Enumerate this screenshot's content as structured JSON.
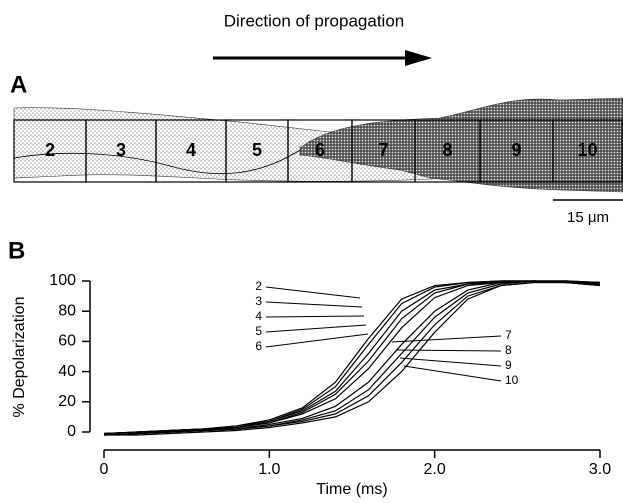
{
  "panel_a": {
    "label": "A",
    "caption": "Direction of propagation",
    "segments": [
      "2",
      "3",
      "4",
      "5",
      "6",
      "7",
      "8",
      "9",
      "10"
    ],
    "scale_bar": "15 μm"
  },
  "chart_data": {
    "type": "line",
    "panel_label": "B",
    "xlabel": "Time (ms)",
    "ylabel": "% Depolarization",
    "xlim": [
      0,
      3.0
    ],
    "xticks": [
      0,
      {
        "value": 1,
        "label": "1.0"
      },
      {
        "value": 2,
        "label": "2.0"
      },
      {
        "value": 3,
        "label": "3.0"
      }
    ],
    "ylim": [
      -5,
      100
    ],
    "yticks": [
      0,
      20,
      40,
      60,
      80,
      100
    ],
    "x": [
      0,
      0.2,
      0.4,
      0.6,
      0.8,
      1.0,
      1.2,
      1.4,
      1.6,
      1.8,
      2.0,
      2.2,
      2.4,
      2.6,
      2.8,
      3.0
    ],
    "series": [
      {
        "name": "2",
        "color": "#000",
        "values": [
          -1,
          0,
          1,
          2,
          4,
          8,
          16,
          33,
          62,
          88,
          97,
          99,
          100,
          100,
          100,
          99
        ]
      },
      {
        "name": "3",
        "color": "#000",
        "values": [
          -1,
          0,
          1,
          2,
          4,
          7,
          15,
          30,
          58,
          85,
          96,
          99,
          100,
          100,
          99,
          99
        ]
      },
      {
        "name": "4",
        "color": "#000",
        "values": [
          -1,
          0,
          1,
          2,
          3,
          7,
          14,
          27,
          52,
          80,
          94,
          98,
          100,
          100,
          100,
          99
        ]
      },
      {
        "name": "5",
        "color": "#000",
        "values": [
          -2,
          -1,
          1,
          2,
          3,
          6,
          13,
          25,
          47,
          75,
          92,
          98,
          99,
          100,
          100,
          98
        ]
      },
      {
        "name": "6",
        "color": "#000",
        "values": [
          -2,
          -1,
          0,
          1,
          3,
          6,
          12,
          22,
          42,
          69,
          89,
          97,
          99,
          100,
          99,
          98
        ]
      },
      {
        "name": "7",
        "color": "#000",
        "values": [
          -2,
          -1,
          0,
          1,
          2,
          5,
          9,
          17,
          33,
          58,
          80,
          94,
          99,
          100,
          99,
          98
        ]
      },
      {
        "name": "8",
        "color": "#000",
        "values": [
          -2,
          -1,
          0,
          1,
          2,
          4,
          8,
          14,
          28,
          52,
          76,
          92,
          98,
          100,
          99,
          97
        ]
      },
      {
        "name": "9",
        "color": "#000",
        "values": [
          -2,
          -1,
          0,
          1,
          2,
          4,
          7,
          12,
          24,
          46,
          71,
          90,
          97,
          99,
          99,
          97
        ]
      },
      {
        "name": "10",
        "color": "#000",
        "values": [
          -2,
          -2,
          -1,
          0,
          1,
          3,
          6,
          10,
          20,
          40,
          66,
          88,
          97,
          99,
          99,
          97
        ]
      }
    ]
  }
}
